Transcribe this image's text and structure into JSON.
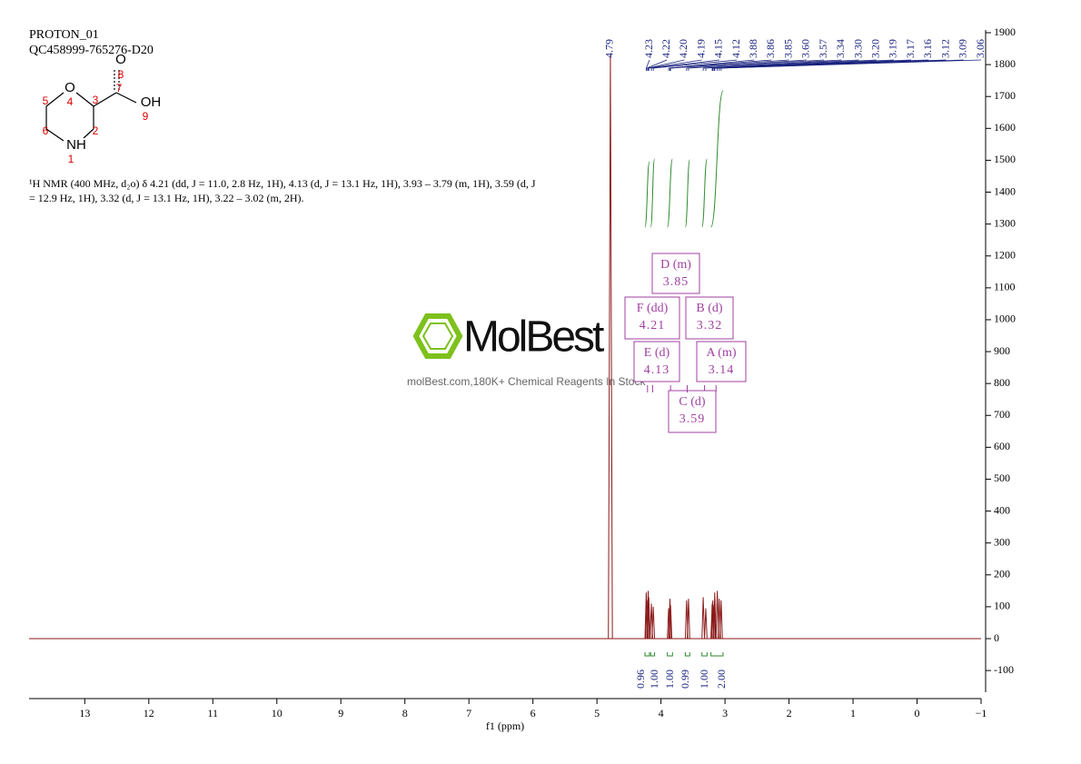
{
  "header": {
    "title": "PROTON_01",
    "sample": "QC458999-765276-D20"
  },
  "structure": {
    "atoms": [
      {
        "symbol": "O",
        "number": 4
      },
      {
        "symbol": "",
        "number": 3
      },
      {
        "symbol": "",
        "number": 2
      },
      {
        "symbol": "NH",
        "number": 1
      },
      {
        "symbol": "",
        "number": 6
      },
      {
        "symbol": "",
        "number": 5
      },
      {
        "symbol": "",
        "number": 7
      },
      {
        "symbol": "O",
        "number": 8
      },
      {
        "symbol": "OH",
        "number": 9
      }
    ]
  },
  "description": "¹H NMR (400 MHz, d₂o) δ 4.21 (dd, J = 11.0, 2.8 Hz, 1H), 4.13 (d, J = 13.1 Hz, 1H), 3.93 – 3.79 (m, 1H), 3.59 (d, J = 12.9 Hz, 1H), 3.32 (d, J = 13.1 Hz, 1H), 3.22 – 3.02 (m, 2H).",
  "watermark": {
    "brand": "MolBest",
    "tagline": "molBest.com,180K+ Chemical Reagents In Stock"
  },
  "chart_data": {
    "type": "nmr",
    "xlabel": "f1 (ppm)",
    "xlim": [
      13.87,
      -1
    ],
    "xticks": [
      13,
      12,
      11,
      10,
      9,
      8,
      7,
      6,
      5,
      4,
      3,
      2,
      1,
      0,
      {
        "value": -1,
        "label": "−1"
      }
    ],
    "ylim": [
      -188,
      1900
    ],
    "yticks": [
      -100,
      0,
      100,
      200,
      300,
      400,
      500,
      600,
      700,
      800,
      900,
      1000,
      1100,
      1200,
      1300,
      1400,
      1500,
      1600,
      1700,
      1800,
      1900
    ],
    "color": "#8b1a1a",
    "label_color": "#1a237e",
    "peaks": {
      "x": [
        4.79,
        4.23,
        4.22,
        4.2,
        4.19,
        4.15,
        4.12,
        3.88,
        3.86,
        3.85,
        3.6,
        3.57,
        3.34,
        3.3,
        3.2,
        3.19,
        3.17,
        3.16,
        3.12,
        3.09,
        3.06
      ],
      "x_labels": [
        "4.79",
        "4.23",
        "4.22",
        "4.20",
        "4.19",
        "4.15",
        "4.12",
        "3.88",
        "3.86",
        "3.85",
        "3.60",
        "3.57",
        "3.34",
        "3.30",
        "3.20",
        "3.19",
        "3.17",
        "3.16",
        "3.12",
        "3.09",
        "3.06"
      ],
      "heights": [
        1830,
        145,
        120,
        150,
        130,
        110,
        100,
        95,
        125,
        105,
        120,
        125,
        130,
        95,
        110,
        120,
        105,
        145,
        150,
        125,
        120
      ]
    },
    "integrals": {
      "color": "#2e8b2e",
      "ranges": [
        [
          4.25,
          4.18
        ],
        [
          4.16,
          4.1
        ],
        [
          3.9,
          3.82
        ],
        [
          3.62,
          3.55
        ],
        [
          3.36,
          3.28
        ],
        [
          3.22,
          3.03
        ]
      ],
      "values": [
        0.96,
        1,
        1,
        0.99,
        1,
        2
      ],
      "value_labels": [
        "0.96",
        "1.00",
        "1.00",
        "0.99",
        "1.00",
        "2.00"
      ]
    },
    "multiplets": {
      "color": "#a040a0",
      "names": [
        "D (m)",
        "F (dd)",
        "B (d)",
        "E (d)",
        "A (m)",
        "C (d)"
      ],
      "shifts": [
        3.85,
        4.21,
        3.32,
        4.13,
        3.14,
        3.59
      ]
    }
  }
}
